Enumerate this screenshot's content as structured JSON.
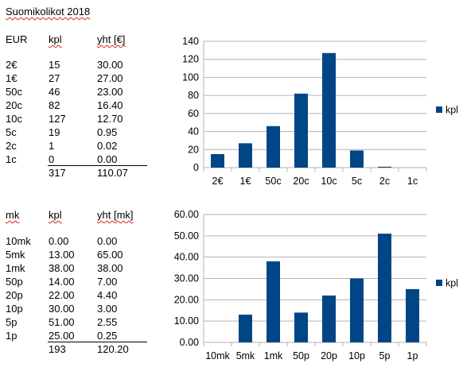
{
  "sheet_title": "Suomikolikot 2018",
  "table1": {
    "headers": [
      "EUR",
      "kpl",
      "yht [€]"
    ],
    "rows": [
      [
        "2€",
        "15",
        "30.00"
      ],
      [
        "1€",
        "27",
        "27.00"
      ],
      [
        "50c",
        "46",
        "23.00"
      ],
      [
        "20c",
        "82",
        "16.40"
      ],
      [
        "10c",
        "127",
        "12.70"
      ],
      [
        "5c",
        "19",
        "0.95"
      ],
      [
        "2c",
        "1",
        "0.02"
      ],
      [
        "1c",
        "0",
        "0.00"
      ]
    ],
    "totals": [
      "317",
      "110.07"
    ]
  },
  "table2": {
    "headers": [
      "mk",
      "kpl",
      "yht [mk]"
    ],
    "rows": [
      [
        "10mk",
        "0.00",
        "0.00"
      ],
      [
        "5mk",
        "13.00",
        "65.00"
      ],
      [
        "1mk",
        "38.00",
        "38.00"
      ],
      [
        "50p",
        "14.00",
        "7.00"
      ],
      [
        "20p",
        "22.00",
        "4.40"
      ],
      [
        "10p",
        "30.00",
        "3.00"
      ],
      [
        "5p",
        "51.00",
        "2.55"
      ],
      [
        "1p",
        "25.00",
        "0.25"
      ]
    ],
    "totals": [
      "193",
      "120.20"
    ]
  },
  "chart_data": [
    {
      "type": "bar",
      "categories": [
        "2€",
        "1€",
        "50c",
        "20c",
        "10c",
        "5c",
        "2c",
        "1c"
      ],
      "series": [
        {
          "name": "kpl",
          "values": [
            15,
            27,
            46,
            82,
            127,
            19,
            1,
            0
          ]
        }
      ],
      "ylim": [
        0,
        140
      ],
      "yticks": [
        "0",
        "20",
        "40",
        "60",
        "80",
        "100",
        "120",
        "140"
      ],
      "legend": "right",
      "grid": true,
      "bar_color": "#004586"
    },
    {
      "type": "bar",
      "categories": [
        "10mk",
        "5mk",
        "1mk",
        "50p",
        "20p",
        "10p",
        "5p",
        "1p"
      ],
      "series": [
        {
          "name": "kpl",
          "values": [
            0,
            13,
            38,
            14,
            22,
            30,
            51,
            25
          ]
        }
      ],
      "ylim": [
        0,
        60
      ],
      "yticks": [
        "0.00",
        "10.00",
        "20.00",
        "30.00",
        "40.00",
        "50.00",
        "60.00"
      ],
      "legend": "right",
      "grid": true,
      "bar_color": "#004586"
    }
  ]
}
